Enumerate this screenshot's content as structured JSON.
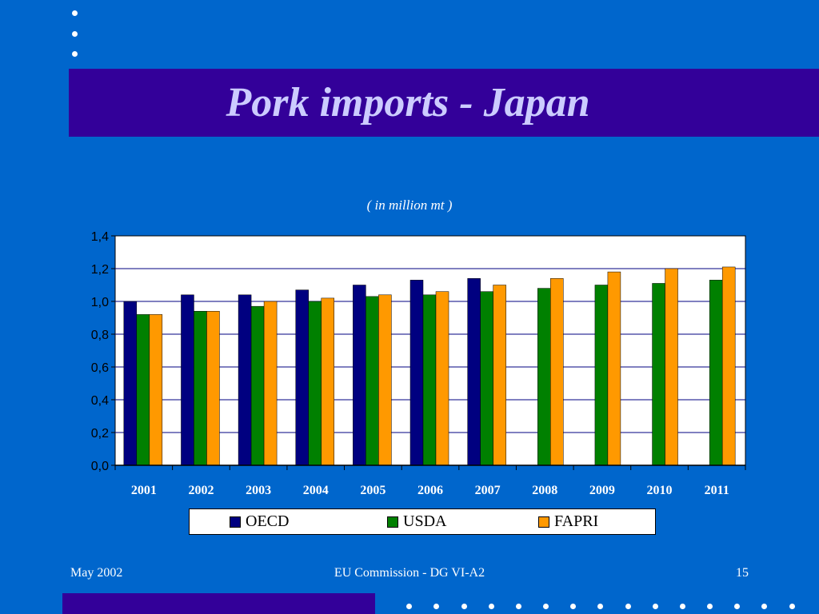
{
  "slide": {
    "title": "Pork imports - Japan",
    "subtitle": "( in million mt )"
  },
  "footer": {
    "date": "May 2002",
    "source": "EU Commission - DG VI-A2",
    "page": "15"
  },
  "colors": {
    "background": "#0066cc",
    "title_bar": "#330099",
    "title_text": "#ccccff",
    "OECD": "#000080",
    "USDA": "#008000",
    "FAPRI": "#ff9900"
  },
  "legend": {
    "oecd": "OECD",
    "usda": "USDA",
    "fapri": "FAPRI"
  },
  "chart_data": {
    "type": "bar",
    "categories": [
      "2001",
      "2002",
      "2003",
      "2004",
      "2005",
      "2006",
      "2007",
      "2008",
      "2009",
      "2010",
      "2011"
    ],
    "series": [
      {
        "name": "OECD",
        "values": [
          1.0,
          1.04,
          1.04,
          1.07,
          1.1,
          1.13,
          1.14,
          null,
          null,
          null,
          null
        ]
      },
      {
        "name": "USDA",
        "values": [
          0.92,
          0.94,
          0.97,
          1.0,
          1.03,
          1.04,
          1.06,
          1.08,
          1.1,
          1.11,
          1.13
        ]
      },
      {
        "name": "FAPRI",
        "values": [
          0.92,
          0.94,
          1.0,
          1.02,
          1.04,
          1.06,
          1.1,
          1.14,
          1.18,
          1.2,
          1.21
        ]
      }
    ],
    "yticks": [
      "0,0",
      "0,2",
      "0,4",
      "0,6",
      "0,8",
      "1,0",
      "1,2",
      "1,4"
    ],
    "ylim": [
      0,
      1.4
    ],
    "grid": true,
    "legend_position": "bottom"
  }
}
